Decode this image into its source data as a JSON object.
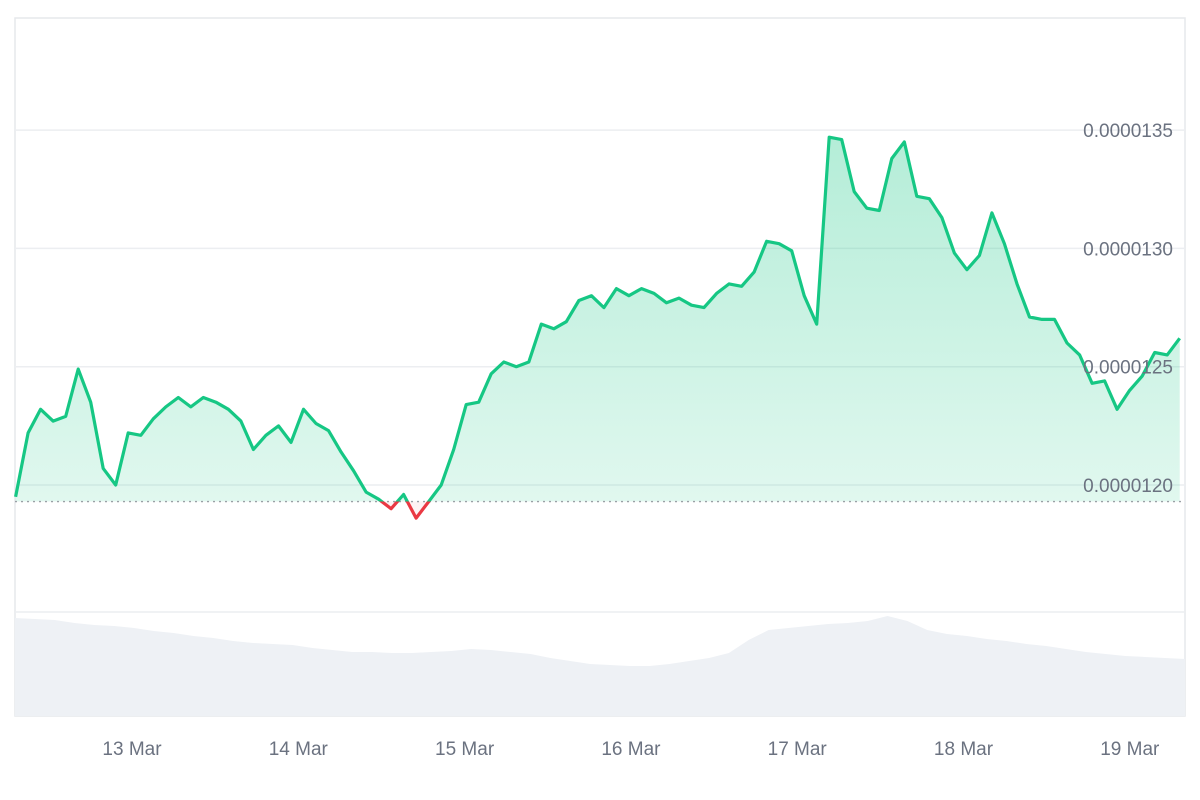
{
  "chart_data": {
    "type": "area",
    "title": "",
    "xlabel": "",
    "ylabel": "",
    "x_ticks": [
      "13 Mar",
      "14 Mar",
      "15 Mar",
      "16 Mar",
      "17 Mar",
      "18 Mar",
      "19 Mar"
    ],
    "y_ticks": [
      "0.0000120",
      "0.0000125",
      "0.0000130",
      "0.0000135"
    ],
    "y_tick_values": [
      1.2e-05,
      1.25e-05,
      1.3e-05,
      1.35e-05
    ],
    "ylim": [
      1.14e-05,
      1.39e-05
    ],
    "baseline": 1.193e-05,
    "colors": {
      "above": "#16c784",
      "below": "#ea3943",
      "volume": "#eef1f5",
      "grid": "#eceef1"
    },
    "price": {
      "x_start_day": 12.3,
      "x_end_day": 19.3,
      "values": [
        1.195e-05,
        1.222e-05,
        1.232e-05,
        1.227e-05,
        1.229e-05,
        1.249e-05,
        1.235e-05,
        1.207e-05,
        1.2e-05,
        1.222e-05,
        1.221e-05,
        1.228e-05,
        1.233e-05,
        1.237e-05,
        1.233e-05,
        1.237e-05,
        1.235e-05,
        1.232e-05,
        1.227e-05,
        1.215e-05,
        1.221e-05,
        1.225e-05,
        1.218e-05,
        1.232e-05,
        1.226e-05,
        1.223e-05,
        1.214e-05,
        1.206e-05,
        1.197e-05,
        1.194e-05,
        1.19e-05,
        1.196e-05,
        1.186e-05,
        1.193e-05,
        1.2e-05,
        1.215e-05,
        1.234e-05,
        1.235e-05,
        1.247e-05,
        1.252e-05,
        1.25e-05,
        1.252e-05,
        1.268e-05,
        1.266e-05,
        1.269e-05,
        1.278e-05,
        1.28e-05,
        1.275e-05,
        1.283e-05,
        1.28e-05,
        1.283e-05,
        1.281e-05,
        1.277e-05,
        1.279e-05,
        1.276e-05,
        1.275e-05,
        1.281e-05,
        1.285e-05,
        1.284e-05,
        1.29e-05,
        1.303e-05,
        1.302e-05,
        1.299e-05,
        1.28e-05,
        1.268e-05,
        1.347e-05,
        1.346e-05,
        1.324e-05,
        1.317e-05,
        1.316e-05,
        1.338e-05,
        1.345e-05,
        1.322e-05,
        1.321e-05,
        1.313e-05,
        1.298e-05,
        1.291e-05,
        1.297e-05,
        1.315e-05,
        1.302e-05,
        1.285e-05,
        1.271e-05,
        1.27e-05,
        1.27e-05,
        1.26e-05,
        1.255e-05,
        1.243e-05,
        1.244e-05,
        1.232e-05,
        1.24e-05,
        1.246e-05,
        1.256e-05,
        1.255e-05,
        1.262e-05
      ]
    },
    "volume": {
      "values": [
        0.98,
        0.97,
        0.96,
        0.93,
        0.91,
        0.9,
        0.88,
        0.85,
        0.83,
        0.8,
        0.78,
        0.75,
        0.73,
        0.72,
        0.71,
        0.68,
        0.66,
        0.64,
        0.64,
        0.63,
        0.63,
        0.64,
        0.65,
        0.67,
        0.66,
        0.64,
        0.62,
        0.58,
        0.55,
        0.52,
        0.51,
        0.5,
        0.5,
        0.52,
        0.55,
        0.58,
        0.63,
        0.76,
        0.86,
        0.88,
        0.9,
        0.92,
        0.93,
        0.95,
        1.0,
        0.95,
        0.86,
        0.82,
        0.8,
        0.77,
        0.75,
        0.72,
        0.7,
        0.67,
        0.64,
        0.62,
        0.6,
        0.59,
        0.58,
        0.57
      ]
    }
  }
}
